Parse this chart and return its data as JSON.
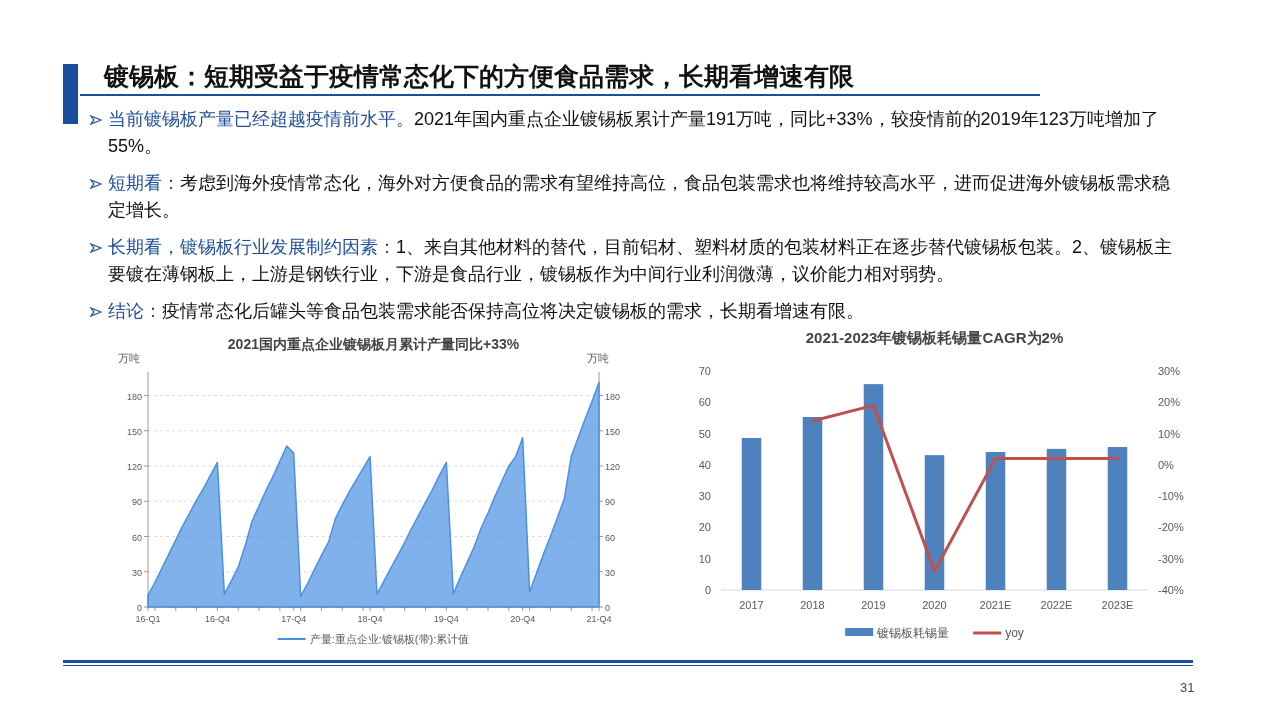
{
  "chart_data": [
    {
      "type": "other",
      "title": "镀锡板：短期受益于疫情常态化下的方便食品需求，长期看增速有限",
      "annotations": [
        "当前镀锡板产量已经超越疫情前水平。2021年国内重点企业镀锡板累计产量191万吨，同比+33%，较疫情前的2019年123万吨增加了55%。",
        "短期看：考虑到海外疫情常态化，海外对方便食品的需求有望维持高位，食品包装需求也将维持较高水平，进而促进海外镀锡板需求稳定增长。",
        "长期看，镀锡板行业发展制约因素：1、来自其他材料的替代，目前铝材、塑料材质的包装材料正在逐步替代镀锡板包装。2、镀锡板主要镀在薄钢板上，上游是钢铁行业，下游是食品行业，镀锡板作为中间行业利润微薄，议价能力相对弱势。",
        "结论：疫情常态化后罐头等食品包装需求能否保持高位将决定镀锡板的需求，长期看增速有限。",
        "31"
      ]
    },
    {
      "type": "area",
      "title": "2021国内重点企业镀锡板月累计产量同比+33%",
      "ylabel": "万吨",
      "y2label": "万吨",
      "categories": [
        "16-Q1",
        null,
        null,
        null,
        null,
        null,
        null,
        null,
        null,
        null,
        "16-Q4",
        null,
        null,
        null,
        null,
        null,
        null,
        null,
        null,
        null,
        null,
        "17-Q4",
        null,
        null,
        null,
        null,
        null,
        null,
        null,
        null,
        null,
        null,
        "18-Q4",
        null,
        null,
        null,
        null,
        null,
        null,
        null,
        null,
        null,
        null,
        "19-Q4",
        null,
        null,
        null,
        null,
        null,
        null,
        null,
        null,
        null,
        null,
        "20-Q4",
        null,
        null,
        null,
        null,
        null,
        null,
        null,
        null,
        null,
        null,
        "21-Q4"
      ],
      "series": [
        {
          "name": "产量:重点企业:镀锡板(带):累计值",
          "color": "#4a90e2",
          "values": [
            10,
            21,
            33,
            45,
            57,
            69,
            80,
            91,
            101,
            112,
            123,
            11,
            22,
            34,
            52,
            73,
            86,
            99,
            111,
            124,
            137,
            131,
            9,
            20,
            32,
            44,
            55,
            75,
            87,
            98,
            108,
            118,
            128,
            11,
            22,
            33,
            44,
            55,
            67,
            78,
            89,
            100,
            112,
            123,
            11,
            25,
            38,
            51,
            67,
            80,
            94,
            107,
            120,
            128,
            144,
            13,
            29,
            45,
            60,
            76,
            92,
            128,
            144,
            160,
            175,
            191
          ]
        }
      ],
      "ylim": [
        0,
        200
      ],
      "yticks": [
        0,
        30,
        60,
        90,
        120,
        150,
        180
      ],
      "y2lim": [
        0,
        200
      ],
      "y2ticks": [
        0,
        30,
        60,
        90,
        120,
        150,
        180
      ],
      "grid": "y",
      "legend": "bottom"
    },
    {
      "type": "bar",
      "title": "2021-2023年镀锡板耗锡量CAGR为2%",
      "categories": [
        "2017",
        "2018",
        "2019",
        "2020",
        "2021E",
        "2022E",
        "2023E"
      ],
      "series": [
        {
          "name": "镀锡板耗锡量",
          "type": "bar",
          "color": "#4f81bd",
          "values": [
            48.6,
            55.3,
            65.8,
            43.1,
            44.1,
            45.1,
            45.7
          ]
        },
        {
          "name": "yoy",
          "type": "line",
          "axis": "y2",
          "color": "#c0504d",
          "values": [
            null,
            14,
            19,
            -34,
            2,
            2,
            2
          ]
        }
      ],
      "ylim": [
        0,
        70
      ],
      "yticks": [
        0,
        10,
        20,
        30,
        40,
        50,
        60,
        70
      ],
      "y2lim": [
        -40,
        30
      ],
      "y2ticks": [
        {
          "value": -40,
          "label": "-40%"
        },
        {
          "value": -30,
          "label": "-30%"
        },
        {
          "value": -20,
          "label": "-20%"
        },
        {
          "value": -10,
          "label": "-10%"
        },
        {
          "value": 0,
          "label": "0%"
        },
        {
          "value": 10,
          "label": "10%"
        },
        {
          "value": 20,
          "label": "20%"
        },
        {
          "value": 30,
          "label": "30%"
        }
      ],
      "legend": "bottom"
    }
  ]
}
